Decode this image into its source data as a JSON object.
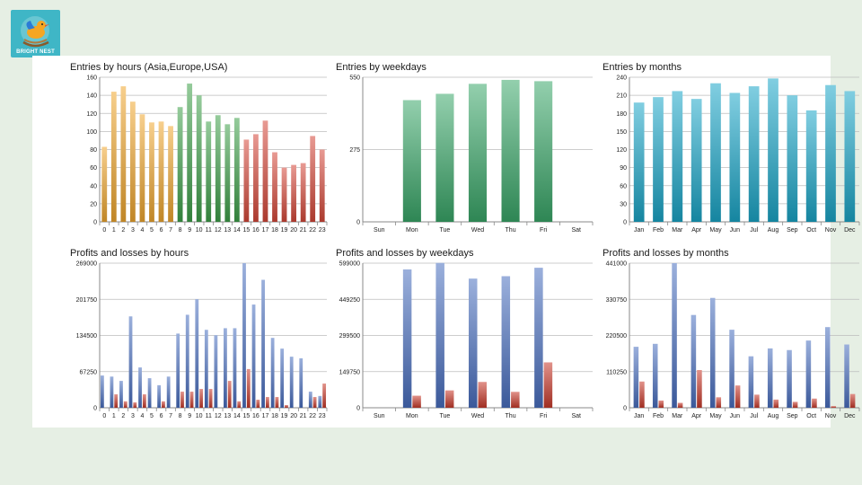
{
  "brand": {
    "name": "BRIGHT NEST",
    "colors": {
      "badge": "#3fb6c6",
      "bird": "#f5a623"
    }
  },
  "panels": [
    {
      "id": "entries-hours",
      "title": "Entries by hours (Asia,Europe,USA)",
      "chart_data": {
        "type": "bar",
        "categories": [
          "0",
          "1",
          "2",
          "3",
          "4",
          "5",
          "6",
          "7",
          "8",
          "9",
          "10",
          "11",
          "12",
          "13",
          "14",
          "15",
          "16",
          "17",
          "18",
          "19",
          "20",
          "21",
          "22",
          "23"
        ],
        "values": [
          83,
          144,
          150,
          133,
          119,
          110,
          111,
          106,
          127,
          153,
          140,
          111,
          118,
          108,
          115,
          91,
          97,
          112,
          77,
          60,
          63,
          65,
          95,
          80
        ],
        "yticks": [
          0,
          20,
          40,
          60,
          80,
          100,
          120,
          140,
          160
        ],
        "ylim": [
          0,
          160
        ],
        "colors": [
          "#f0a830",
          "#f0a830",
          "#f0a830",
          "#f0a830",
          "#f0a830",
          "#f0a830",
          "#f0a830",
          "#f0a830",
          "#3fa04a",
          "#3fa04a",
          "#3fa04a",
          "#3fa04a",
          "#3fa04a",
          "#3fa04a",
          "#3fa04a",
          "#d6483a",
          "#d6483a",
          "#d6483a",
          "#d6483a",
          "#d6483a",
          "#d6483a",
          "#d6483a",
          "#d6483a",
          "#d6483a"
        ],
        "grid": true
      }
    },
    {
      "id": "entries-weekdays",
      "title": "Entries by weekdays",
      "chart_data": {
        "type": "bar",
        "categories": [
          "Sun",
          "Mon",
          "Tue",
          "Wed",
          "Thu",
          "Fri",
          "Sat"
        ],
        "values": [
          0,
          463,
          487,
          525,
          540,
          535,
          0
        ],
        "yticks": [
          0,
          275,
          550
        ],
        "ylim": [
          0,
          550
        ],
        "colors": [
          "#3aa869"
        ],
        "grid": true
      }
    },
    {
      "id": "entries-months",
      "title": "Entries by months",
      "chart_data": {
        "type": "bar",
        "categories": [
          "Jan",
          "Feb",
          "Mar",
          "Apr",
          "May",
          "Jun",
          "Jul",
          "Aug",
          "Sep",
          "Oct",
          "Nov",
          "Dec"
        ],
        "values": [
          198,
          207,
          217,
          204,
          230,
          214,
          225,
          238,
          210,
          185,
          227,
          217
        ],
        "yticks": [
          0,
          30,
          60,
          90,
          120,
          150,
          180,
          210,
          240
        ],
        "ylim": [
          0,
          240
        ],
        "colors": [
          "#1aa6c8"
        ],
        "grid": true
      }
    },
    {
      "id": "pl-hours",
      "title": "Profits and losses by hours",
      "chart_data": {
        "type": "bar",
        "categories": [
          "0",
          "1",
          "2",
          "3",
          "4",
          "5",
          "6",
          "7",
          "8",
          "9",
          "10",
          "11",
          "12",
          "13",
          "14",
          "15",
          "16",
          "17",
          "18",
          "19",
          "20",
          "21",
          "22",
          "23"
        ],
        "yticks": [
          0,
          67250,
          134500,
          201750,
          269000
        ],
        "ylim": [
          0,
          269000
        ],
        "series": [
          {
            "values": [
              60000,
              58000,
              50000,
              170000,
              75000,
              55000,
              42000,
              58000,
              138000,
              173000,
              202000,
              145000,
              135000,
              148000,
              148000,
              269000,
              192000,
              238000,
              130000,
              110000,
              95000,
              92000,
              30000,
              22000
            ],
            "color": "#4a6fc0"
          },
          {
            "values": [
              0,
              25000,
              12000,
              10000,
              25000,
              0,
              12000,
              0,
              30000,
              30000,
              35000,
              35000,
              0,
              50000,
              12000,
              72000,
              15000,
              20000,
              20000,
              5000,
              0,
              0,
              20000,
              45000
            ],
            "color": "#c8392b"
          }
        ],
        "grid": true
      }
    },
    {
      "id": "pl-weekdays",
      "title": "Profits and losses by weekdays",
      "chart_data": {
        "type": "bar",
        "categories": [
          "Sun",
          "Mon",
          "Tue",
          "Wed",
          "Thu",
          "Fri",
          "Sat"
        ],
        "yticks": [
          0,
          149750,
          299500,
          449250,
          599000
        ],
        "ylim": [
          0,
          599000
        ],
        "series": [
          {
            "values": [
              0,
              573000,
              600000,
              535000,
              545000,
              580000,
              0
            ],
            "color": "#4a6fc0"
          },
          {
            "values": [
              0,
              50000,
              72000,
              107000,
              66000,
              188000,
              0
            ],
            "color": "#c8392b"
          }
        ],
        "grid": true
      }
    },
    {
      "id": "pl-months",
      "title": "Profits and losses by months",
      "chart_data": {
        "type": "bar",
        "categories": [
          "Jan",
          "Feb",
          "Mar",
          "Apr",
          "May",
          "Jun",
          "Jul",
          "Aug",
          "Sep",
          "Oct",
          "Nov",
          "Dec"
        ],
        "yticks": [
          0,
          110250,
          220500,
          330750,
          441000
        ],
        "ylim": [
          0,
          441000
        ],
        "series": [
          {
            "values": [
              186000,
              195000,
              441000,
              283000,
              335000,
              238000,
              157000,
              181000,
              176000,
              205000,
              246000,
              193000
            ],
            "color": "#4a6fc0"
          },
          {
            "values": [
              80000,
              22000,
              15000,
              115000,
              32000,
              68000,
              40000,
              25000,
              18000,
              28000,
              5000,
              42000
            ],
            "color": "#c8392b"
          }
        ],
        "grid": true
      }
    }
  ]
}
